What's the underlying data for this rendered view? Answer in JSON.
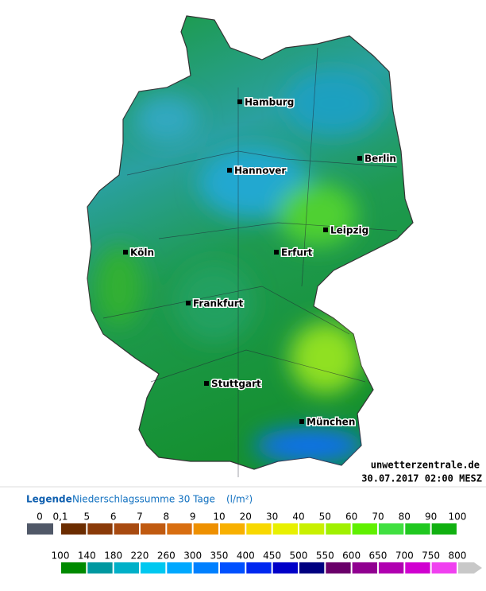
{
  "map": {
    "cities": [
      "Hamburg",
      "Berlin",
      "Hannover",
      "Leipzig",
      "Köln",
      "Erfurt",
      "Frankfurt",
      "Stuttgart",
      "München"
    ],
    "watermark": "unwetterzentrale.de",
    "timestamp": "30.07.2017 02:00 MESZ"
  },
  "legend": {
    "title": "Legende",
    "subtitle": "Niederschlagssumme 30 Tage",
    "unit": "(l/m²)",
    "row1": {
      "labels": [
        "0",
        "0,1",
        "5",
        "6",
        "7",
        "8",
        "9",
        "10",
        "20",
        "30",
        "40",
        "50",
        "60",
        "70",
        "80",
        "90",
        "100"
      ],
      "colors": [
        "#505868",
        "#6b2c00",
        "#8a3a08",
        "#a84a10",
        "#c05a10",
        "#d86e10",
        "#ee9000",
        "#f8b000",
        "#f8d800",
        "#e8f000",
        "#c8f000",
        "#a0f000",
        "#60f000",
        "#40e040",
        "#20c820",
        "#10b010"
      ]
    },
    "row2": {
      "labels": [
        "100",
        "140",
        "180",
        "220",
        "260",
        "300",
        "350",
        "400",
        "450",
        "500",
        "550",
        "600",
        "650",
        "700",
        "750",
        "800"
      ],
      "colors": [
        "#008a00",
        "#0098a0",
        "#00b0c8",
        "#00c8f0",
        "#00a8ff",
        "#0080ff",
        "#0050ff",
        "#0028f0",
        "#0000c8",
        "#000080",
        "#6a006a",
        "#900090",
        "#b000b0",
        "#d000d0",
        "#f040f0",
        "#c8c8c8"
      ]
    }
  }
}
